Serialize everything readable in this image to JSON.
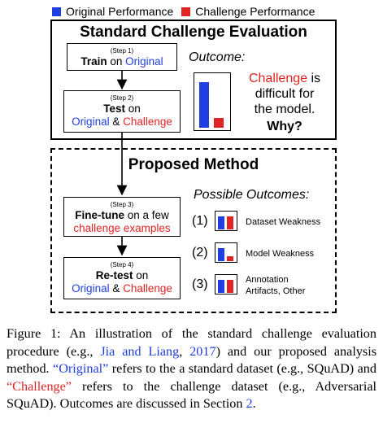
{
  "legend": {
    "original": "Original Performance",
    "challenge": "Challenge Performance"
  },
  "colors": {
    "original": "#1f3fe0",
    "challenge": "#e02424"
  },
  "standard": {
    "title": "Standard Challenge Evaluation",
    "step1": {
      "num": "(Step 1)",
      "verb": "Train",
      "on": "on",
      "target": "Original"
    },
    "step2": {
      "num": "(Step 2)",
      "verb": "Test",
      "on": "on",
      "target_a": "Original",
      "amp": "&",
      "target_b": "Challenge"
    },
    "outcome_label": "Outcome:",
    "outcome_line1_red": "Challenge",
    "outcome_line1_rest": " is",
    "outcome_line2": "difficult for",
    "outcome_line3": "the model.",
    "why": "Why?",
    "bars": {
      "original": 0.9,
      "challenge": 0.2
    }
  },
  "proposed": {
    "title": "Proposed Method",
    "step3": {
      "num": "(Step 3)",
      "verb": "Fine-tune",
      "rest": " on a few",
      "examples": "challenge examples"
    },
    "step4": {
      "num": "(Step 4)",
      "verb": "Re-test",
      "on": "on",
      "target_a": "Original",
      "amp": "&",
      "target_b": "Challenge"
    },
    "possible_label": "Possible Outcomes:",
    "outcomes": [
      {
        "num": "(1)",
        "label": "Dataset Weakness",
        "bars": {
          "original": 0.75,
          "challenge": 0.75
        }
      },
      {
        "num": "(2)",
        "label": "Model Weakness",
        "bars": {
          "original": 0.75,
          "challenge": 0.3
        }
      },
      {
        "num": "(3)",
        "label_line1": "Annotation",
        "label_line2": "Artifacts, Other",
        "bars": {
          "original": 0.75,
          "challenge": 0.75
        }
      }
    ]
  },
  "caption": {
    "p1": "Figure 1: An illustration of the standard challenge evaluation procedure (e.g., ",
    "cite": "Jia and Liang",
    "p2": ", ",
    "year": "2017",
    "p3": ") and our proposed analysis method. ",
    "original_q": "“Original”",
    "p4": " refers to the a standard dataset (e.g., SQuAD) and ",
    "challenge_q": "“Challenge”",
    "p5": " refers to the challenge dataset (e.g., Adversarial SQuAD). Outcomes are discussed in Section ",
    "section": "2",
    "p6": "."
  }
}
